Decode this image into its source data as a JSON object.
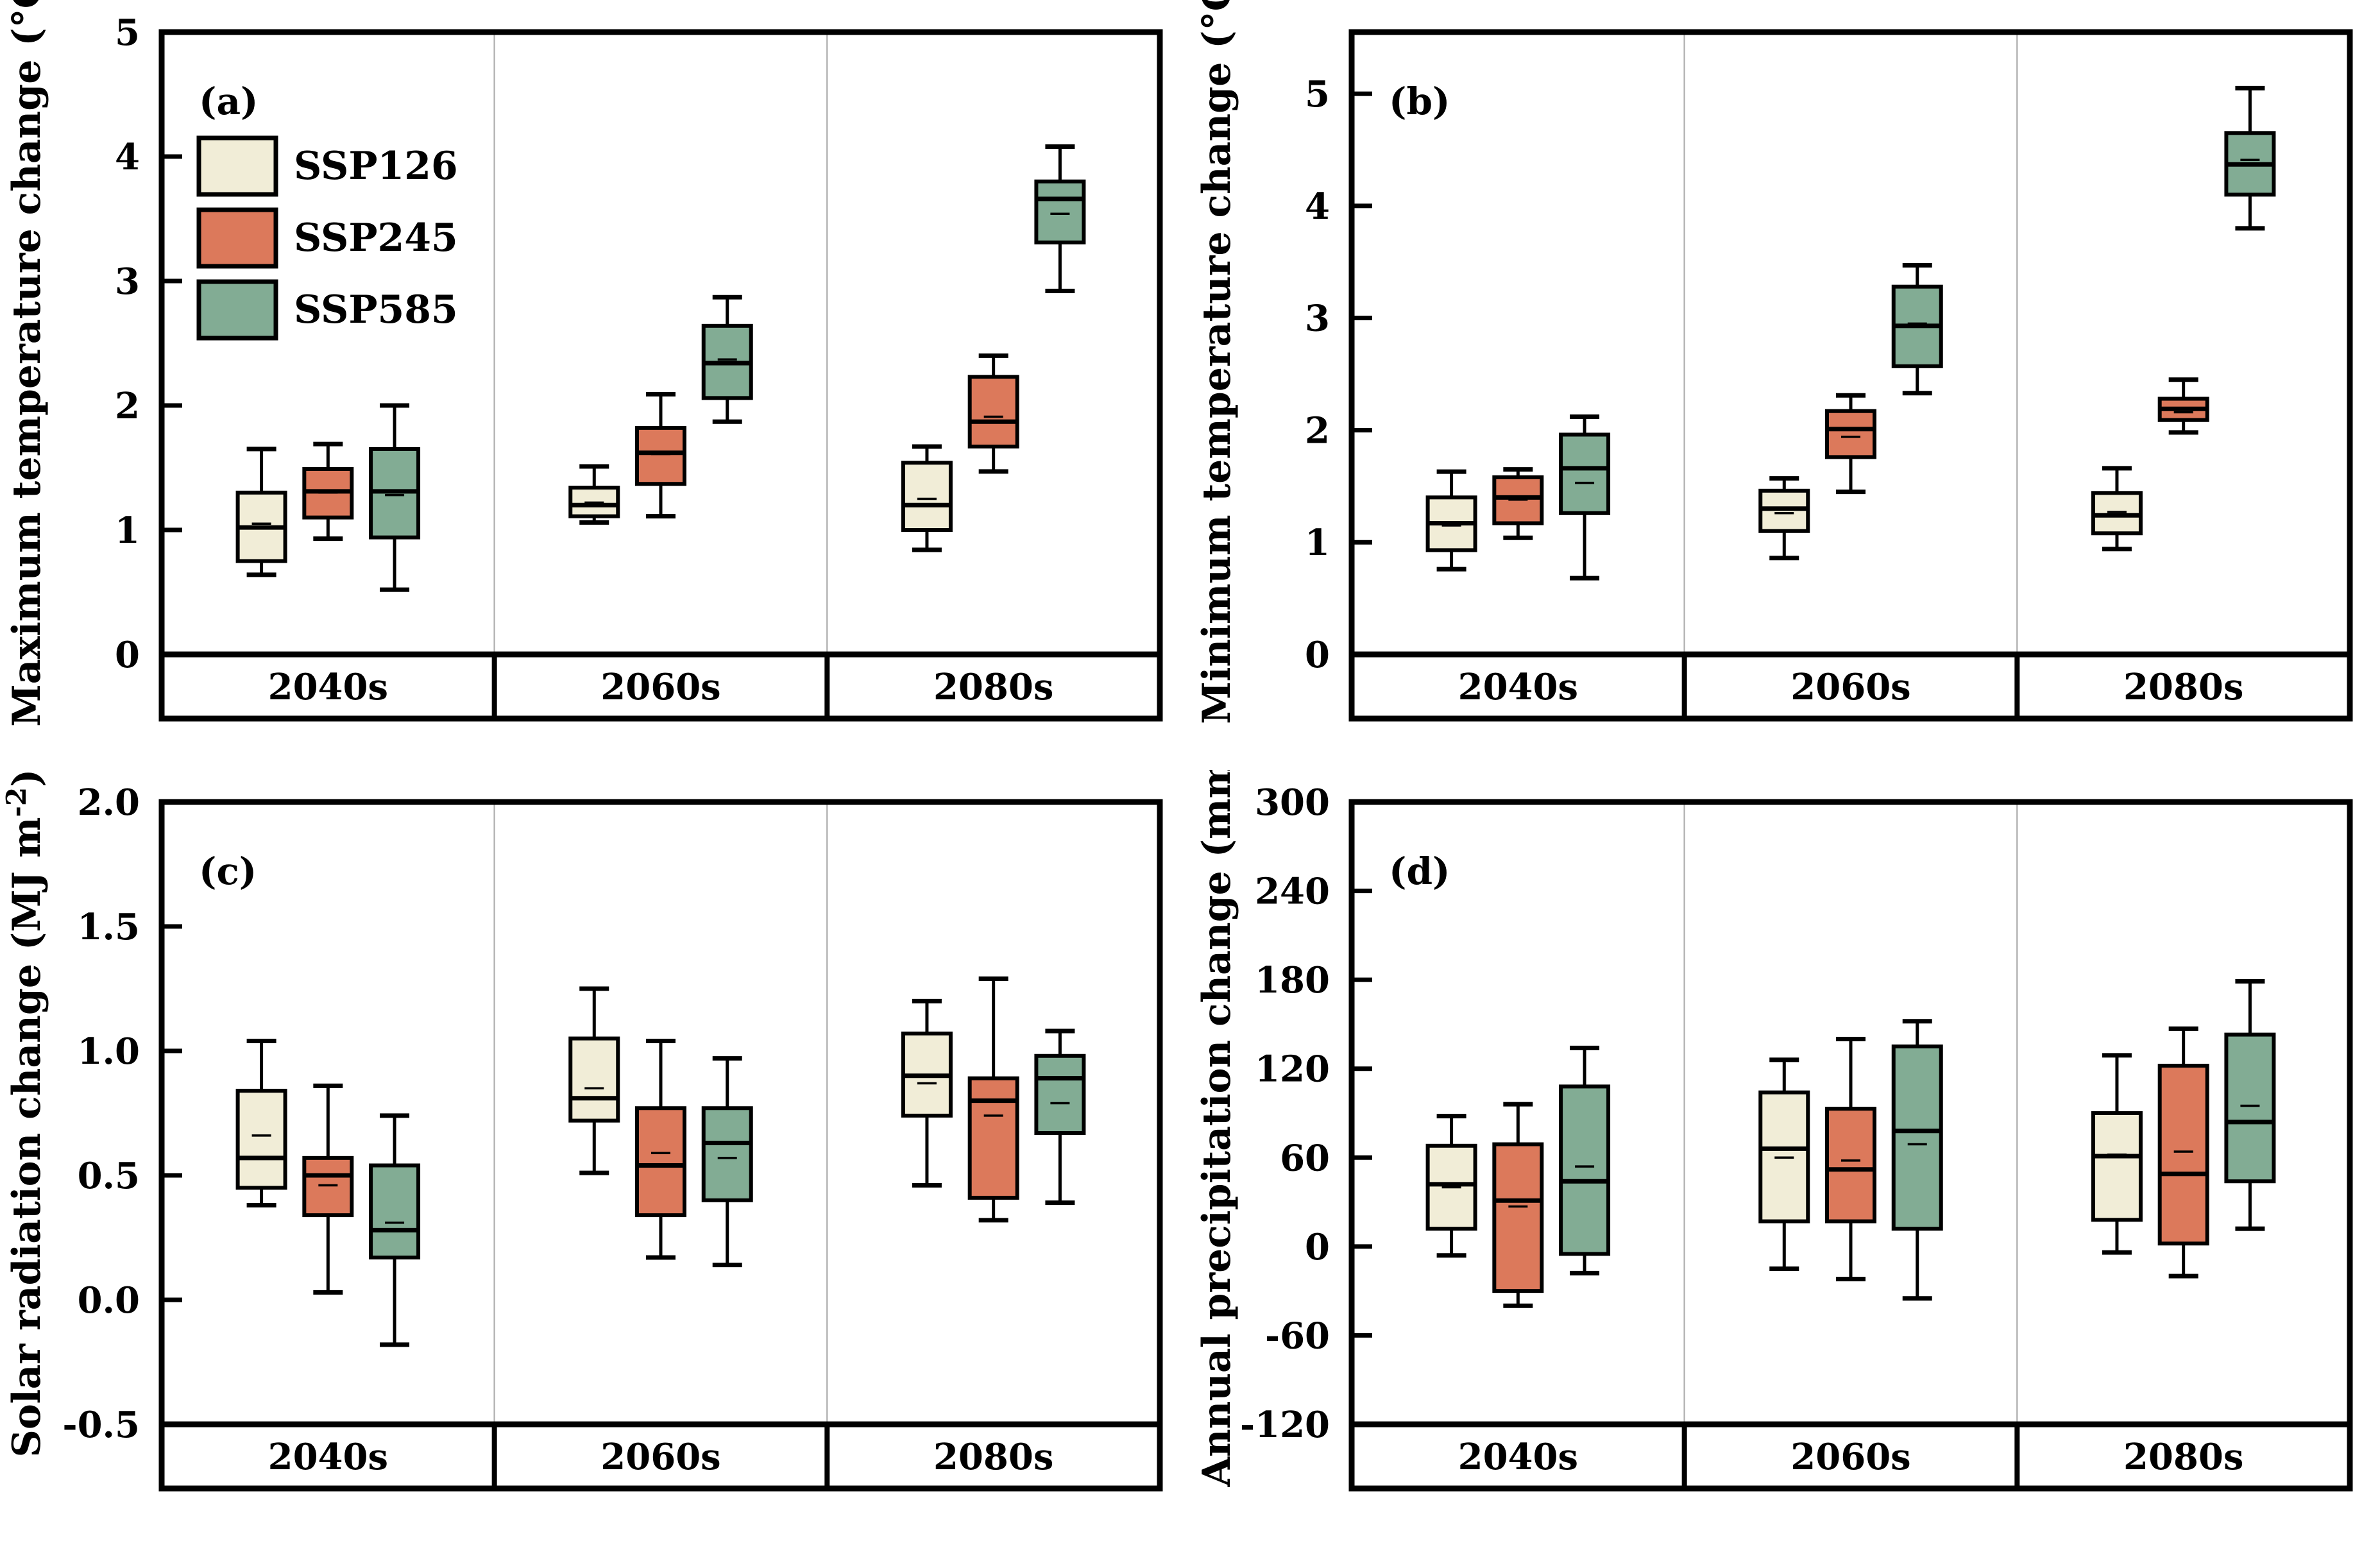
{
  "figure": {
    "background": "#ffffff",
    "axis_color": "#000000",
    "divider_color": "#b5b5b5"
  },
  "legend": {
    "items": [
      {
        "label": "SSP126",
        "color": "#F1EDD7"
      },
      {
        "label": "SSP245",
        "color": "#DC795B"
      },
      {
        "label": "SSP585",
        "color": "#82AC94"
      }
    ]
  },
  "chart_data": [
    {
      "id": "a",
      "type": "box",
      "letter": "(a)",
      "ylabel": "Maximum temperature change (°C)",
      "ylabel_sup": "",
      "ylabel_post": "",
      "ylim": [
        0,
        5
      ],
      "yticks": [
        {
          "v": 0,
          "label": "0"
        },
        {
          "v": 1,
          "label": "1"
        },
        {
          "v": 2,
          "label": "2"
        },
        {
          "v": 3,
          "label": "3"
        },
        {
          "v": 4,
          "label": "4"
        },
        {
          "v": 5,
          "label": "5"
        }
      ],
      "categories": [
        "2040s",
        "2060s",
        "2080s"
      ],
      "show_legend": true,
      "grid": false,
      "legend_position": "top-left",
      "series": [
        {
          "name": "SSP126",
          "color": "#F1EDD7",
          "boxes": [
            {
              "lo": 0.64,
              "q1": 0.75,
              "med": 1.02,
              "mean": 1.05,
              "q3": 1.3,
              "hi": 1.65
            },
            {
              "lo": 1.06,
              "q1": 1.11,
              "med": 1.2,
              "mean": 1.22,
              "q3": 1.34,
              "hi": 1.51
            },
            {
              "lo": 0.84,
              "q1": 1.0,
              "med": 1.2,
              "mean": 1.25,
              "q3": 1.54,
              "hi": 1.67
            }
          ]
        },
        {
          "name": "SSP245",
          "color": "#DC795B",
          "boxes": [
            {
              "lo": 0.93,
              "q1": 1.1,
              "med": 1.31,
              "mean": 1.3,
              "q3": 1.49,
              "hi": 1.69
            },
            {
              "lo": 1.11,
              "q1": 1.37,
              "med": 1.62,
              "mean": 1.61,
              "q3": 1.82,
              "hi": 2.09
            },
            {
              "lo": 1.47,
              "q1": 1.67,
              "med": 1.87,
              "mean": 1.91,
              "q3": 2.23,
              "hi": 2.4
            }
          ]
        },
        {
          "name": "SSP585",
          "color": "#82AC94",
          "boxes": [
            {
              "lo": 0.52,
              "q1": 0.94,
              "med": 1.31,
              "mean": 1.28,
              "q3": 1.65,
              "hi": 2.0
            },
            {
              "lo": 1.87,
              "q1": 2.06,
              "med": 2.34,
              "mean": 2.37,
              "q3": 2.64,
              "hi": 2.87
            },
            {
              "lo": 2.92,
              "q1": 3.31,
              "med": 3.66,
              "mean": 3.54,
              "q3": 3.8,
              "hi": 4.08
            }
          ]
        }
      ]
    },
    {
      "id": "b",
      "type": "box",
      "letter": "(b)",
      "ylabel": "Minimum temperature change (°C)",
      "ylabel_sup": "",
      "ylabel_post": "",
      "ylim": [
        0,
        5.55
      ],
      "yticks": [
        {
          "v": 0,
          "label": "0"
        },
        {
          "v": 1,
          "label": "1"
        },
        {
          "v": 2,
          "label": "2"
        },
        {
          "v": 3,
          "label": "3"
        },
        {
          "v": 4,
          "label": "4"
        },
        {
          "v": 5,
          "label": "5"
        }
      ],
      "categories": [
        "2040s",
        "2060s",
        "2080s"
      ],
      "show_legend": false,
      "grid": false,
      "series": [
        {
          "name": "SSP126",
          "color": "#F1EDD7",
          "boxes": [
            {
              "lo": 0.76,
              "q1": 0.93,
              "med": 1.17,
              "mean": 1.15,
              "q3": 1.4,
              "hi": 1.63
            },
            {
              "lo": 0.86,
              "q1": 1.1,
              "med": 1.3,
              "mean": 1.26,
              "q3": 1.46,
              "hi": 1.57
            },
            {
              "lo": 0.94,
              "q1": 1.08,
              "med": 1.24,
              "mean": 1.27,
              "q3": 1.44,
              "hi": 1.66
            }
          ]
        },
        {
          "name": "SSP245",
          "color": "#DC795B",
          "boxes": [
            {
              "lo": 1.04,
              "q1": 1.17,
              "med": 1.4,
              "mean": 1.38,
              "q3": 1.58,
              "hi": 1.65
            },
            {
              "lo": 1.45,
              "q1": 1.76,
              "med": 2.01,
              "mean": 1.94,
              "q3": 2.17,
              "hi": 2.31
            },
            {
              "lo": 1.98,
              "q1": 2.09,
              "med": 2.19,
              "mean": 2.16,
              "q3": 2.28,
              "hi": 2.45
            }
          ]
        },
        {
          "name": "SSP585",
          "color": "#82AC94",
          "boxes": [
            {
              "lo": 0.68,
              "q1": 1.26,
              "med": 1.66,
              "mean": 1.53,
              "q3": 1.96,
              "hi": 2.12
            },
            {
              "lo": 2.33,
              "q1": 2.57,
              "med": 2.93,
              "mean": 2.95,
              "q3": 3.28,
              "hi": 3.47
            },
            {
              "lo": 3.8,
              "q1": 4.1,
              "med": 4.37,
              "mean": 4.41,
              "q3": 4.65,
              "hi": 5.05
            }
          ]
        }
      ]
    },
    {
      "id": "c",
      "type": "box",
      "letter": "(c)",
      "ylabel": "Solar radiation change (MJ m",
      "ylabel_sup": "-2",
      "ylabel_post": ")",
      "ylim": [
        -0.5,
        2.0
      ],
      "yticks": [
        {
          "v": 2.0,
          "label": "2.0"
        },
        {
          "v": 1.5,
          "label": "1.5"
        },
        {
          "v": 1.0,
          "label": "1.0"
        },
        {
          "v": 0.5,
          "label": "0.5"
        },
        {
          "v": 0.0,
          "label": "0.0"
        },
        {
          "v": -0.5,
          "label": "-0.5"
        }
      ],
      "categories": [
        "2040s",
        "2060s",
        "2080s"
      ],
      "show_legend": false,
      "grid": false,
      "series": [
        {
          "name": "SSP126",
          "color": "#F1EDD7",
          "boxes": [
            {
              "lo": 0.38,
              "q1": 0.45,
              "med": 0.57,
              "mean": 0.66,
              "q3": 0.84,
              "hi": 1.04
            },
            {
              "lo": 0.51,
              "q1": 0.72,
              "med": 0.81,
              "mean": 0.85,
              "q3": 1.05,
              "hi": 1.25
            },
            {
              "lo": 0.46,
              "q1": 0.74,
              "med": 0.9,
              "mean": 0.87,
              "q3": 1.07,
              "hi": 1.2
            }
          ]
        },
        {
          "name": "SSP245",
          "color": "#DC795B",
          "boxes": [
            {
              "lo": 0.03,
              "q1": 0.34,
              "med": 0.5,
              "mean": 0.46,
              "q3": 0.57,
              "hi": 0.86
            },
            {
              "lo": 0.17,
              "q1": 0.34,
              "med": 0.54,
              "mean": 0.59,
              "q3": 0.77,
              "hi": 1.04
            },
            {
              "lo": 0.32,
              "q1": 0.41,
              "med": 0.8,
              "mean": 0.74,
              "q3": 0.89,
              "hi": 1.29
            }
          ]
        },
        {
          "name": "SSP585",
          "color": "#82AC94",
          "boxes": [
            {
              "lo": -0.18,
              "q1": 0.17,
              "med": 0.28,
              "mean": 0.31,
              "q3": 0.54,
              "hi": 0.74
            },
            {
              "lo": 0.14,
              "q1": 0.4,
              "med": 0.63,
              "mean": 0.57,
              "q3": 0.77,
              "hi": 0.97
            },
            {
              "lo": 0.39,
              "q1": 0.67,
              "med": 0.89,
              "mean": 0.79,
              "q3": 0.98,
              "hi": 1.08
            }
          ]
        }
      ]
    },
    {
      "id": "d",
      "type": "box",
      "letter": "(d)",
      "ylabel": "Annual precipitation change (mm)",
      "ylabel_sup": "",
      "ylabel_post": "",
      "ylim": [
        -120,
        300
      ],
      "yticks": [
        {
          "v": 300,
          "label": "300"
        },
        {
          "v": 240,
          "label": "240"
        },
        {
          "v": 180,
          "label": "180"
        },
        {
          "v": 120,
          "label": "120"
        },
        {
          "v": 60,
          "label": "60"
        },
        {
          "v": 0,
          "label": "0"
        },
        {
          "v": -60,
          "label": "-60"
        },
        {
          "v": -120,
          "label": "-120"
        }
      ],
      "categories": [
        "2040s",
        "2060s",
        "2080s"
      ],
      "show_legend": false,
      "grid": false,
      "series": [
        {
          "name": "SSP126",
          "color": "#F1EDD7",
          "boxes": [
            {
              "lo": -6,
              "q1": 12,
              "med": 42,
              "mean": 40,
              "q3": 68,
              "hi": 88
            },
            {
              "lo": -15,
              "q1": 17,
              "med": 66,
              "mean": 60,
              "q3": 104,
              "hi": 126
            },
            {
              "lo": -4,
              "q1": 18,
              "med": 61,
              "mean": 62,
              "q3": 90,
              "hi": 129
            }
          ]
        },
        {
          "name": "SSP245",
          "color": "#DC795B",
          "boxes": [
            {
              "lo": -40,
              "q1": -30,
              "med": 31,
              "mean": 27,
              "q3": 69,
              "hi": 96
            },
            {
              "lo": -22,
              "q1": 17,
              "med": 52,
              "mean": 58,
              "q3": 93,
              "hi": 140
            },
            {
              "lo": -20,
              "q1": 2,
              "med": 49,
              "mean": 64,
              "q3": 122,
              "hi": 147
            }
          ]
        },
        {
          "name": "SSP585",
          "color": "#82AC94",
          "boxes": [
            {
              "lo": -18,
              "q1": -5,
              "med": 44,
              "mean": 54,
              "q3": 108,
              "hi": 134
            },
            {
              "lo": -35,
              "q1": 12,
              "med": 78,
              "mean": 69,
              "q3": 135,
              "hi": 152
            },
            {
              "lo": 12,
              "q1": 44,
              "med": 84,
              "mean": 95,
              "q3": 143,
              "hi": 179
            }
          ]
        }
      ]
    }
  ]
}
